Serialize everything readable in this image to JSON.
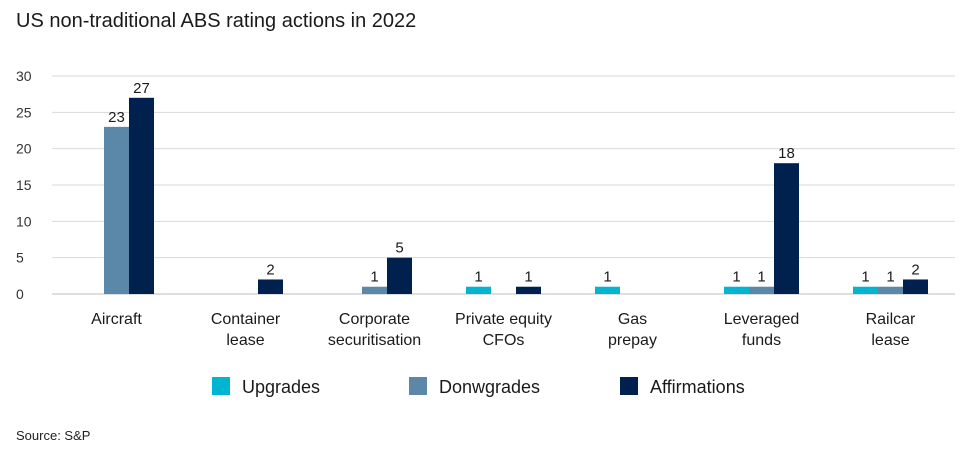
{
  "title": "US non-traditional ABS rating actions in 2022",
  "source": "Source: S&P",
  "chart_data": {
    "type": "bar",
    "title": "US non-traditional ABS rating actions in 2022",
    "xlabel": "",
    "ylabel": "",
    "ylim": [
      0,
      30
    ],
    "yticks": [
      0,
      5,
      10,
      15,
      20,
      25,
      30
    ],
    "grid": true,
    "legend_position": "bottom",
    "categories": [
      [
        "Aircraft"
      ],
      [
        "Container",
        "lease"
      ],
      [
        "Corporate",
        "securitisation"
      ],
      [
        "Private equity",
        "CFOs"
      ],
      [
        "Gas",
        "prepay"
      ],
      [
        "Leveraged",
        "funds"
      ],
      [
        "Railcar",
        "lease"
      ]
    ],
    "series": [
      {
        "name": "Upgrades",
        "color": "#00b5d1",
        "values": [
          null,
          null,
          null,
          1,
          1,
          1,
          1
        ]
      },
      {
        "name": "Donwgrades",
        "color": "#5b87a8",
        "values": [
          23,
          null,
          1,
          null,
          null,
          1,
          1
        ]
      },
      {
        "name": "Affirmations",
        "color": "#00204e",
        "values": [
          27,
          2,
          5,
          1,
          null,
          18,
          2
        ]
      }
    ]
  }
}
